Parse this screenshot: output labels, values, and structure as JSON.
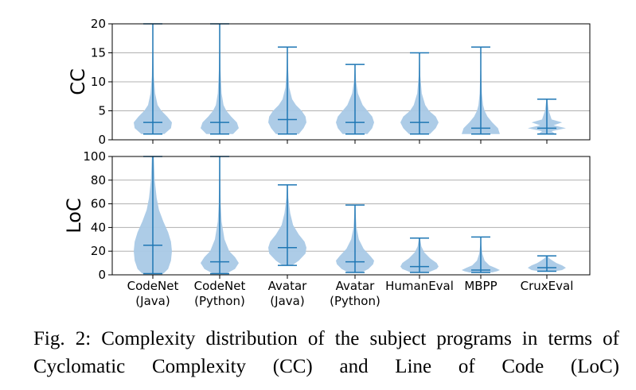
{
  "chart_data": [
    {
      "type": "violin",
      "ylabel": "CC",
      "ylim": [
        0,
        20
      ],
      "yticks": [
        "0",
        "5",
        "10",
        "15",
        "20"
      ],
      "grid": true,
      "categories": [
        "CodeNet\n(Java)",
        "CodeNet\n(Python)",
        "Avatar\n(Java)",
        "Avatar\n(Python)",
        "HumanEval",
        "MBPP",
        "CruxEval"
      ],
      "stats": [
        {
          "min": 1,
          "median": 3,
          "max": 20
        },
        {
          "min": 1,
          "median": 3,
          "max": 20
        },
        {
          "min": 1,
          "median": 3.5,
          "max": 16
        },
        {
          "min": 1,
          "median": 3,
          "max": 13
        },
        {
          "min": 1,
          "median": 3,
          "max": 15
        },
        {
          "min": 1,
          "median": 2,
          "max": 16
        },
        {
          "min": 1,
          "median": 2,
          "max": 7
        }
      ],
      "density": [
        [
          [
            1,
            0.6
          ],
          [
            2,
            0.95
          ],
          [
            3,
            1.0
          ],
          [
            4,
            0.75
          ],
          [
            5,
            0.45
          ],
          [
            6,
            0.25
          ],
          [
            8,
            0.12
          ],
          [
            11,
            0.05
          ],
          [
            15,
            0.025
          ],
          [
            20,
            0.01
          ]
        ],
        [
          [
            1,
            0.7
          ],
          [
            2,
            1.0
          ],
          [
            3,
            0.9
          ],
          [
            4,
            0.6
          ],
          [
            5,
            0.35
          ],
          [
            6,
            0.2
          ],
          [
            8,
            0.1
          ],
          [
            12,
            0.04
          ],
          [
            16,
            0.02
          ],
          [
            20,
            0.01
          ]
        ],
        [
          [
            1,
            0.6
          ],
          [
            2,
            0.85
          ],
          [
            3,
            1.0
          ],
          [
            4,
            0.95
          ],
          [
            5,
            0.75
          ],
          [
            6,
            0.45
          ],
          [
            7,
            0.25
          ],
          [
            9,
            0.1
          ],
          [
            12,
            0.04
          ],
          [
            16,
            0.01
          ]
        ],
        [
          [
            1,
            0.65
          ],
          [
            2,
            0.9
          ],
          [
            3,
            1.0
          ],
          [
            4,
            0.9
          ],
          [
            5,
            0.65
          ],
          [
            6,
            0.4
          ],
          [
            8,
            0.15
          ],
          [
            10,
            0.06
          ],
          [
            13,
            0.01
          ]
        ],
        [
          [
            1,
            0.55
          ],
          [
            2,
            0.85
          ],
          [
            3,
            1.0
          ],
          [
            4,
            0.85
          ],
          [
            5,
            0.5
          ],
          [
            6,
            0.3
          ],
          [
            8,
            0.12
          ],
          [
            11,
            0.04
          ],
          [
            15,
            0.01
          ]
        ],
        [
          [
            1,
            1.0
          ],
          [
            2,
            0.9
          ],
          [
            3,
            0.6
          ],
          [
            4,
            0.35
          ],
          [
            5,
            0.2
          ],
          [
            6,
            0.12
          ],
          [
            8,
            0.06
          ],
          [
            12,
            0.02
          ],
          [
            16,
            0.01
          ]
        ],
        [
          [
            1,
            0.45
          ],
          [
            1.5,
            0.25
          ],
          [
            2,
            1.0
          ],
          [
            2.5,
            0.35
          ],
          [
            3,
            0.8
          ],
          [
            3.5,
            0.25
          ],
          [
            4,
            0.2
          ],
          [
            5,
            0.1
          ],
          [
            7,
            0.02
          ]
        ]
      ]
    },
    {
      "type": "violin",
      "ylabel": "LoC",
      "ylim": [
        0,
        100
      ],
      "yticks": [
        "0",
        "20",
        "40",
        "60",
        "80",
        "100"
      ],
      "grid": true,
      "categories": [
        "CodeNet\n(Java)",
        "CodeNet\n(Python)",
        "Avatar\n(Java)",
        "Avatar\n(Python)",
        "HumanEval",
        "MBPP",
        "CruxEval"
      ],
      "stats": [
        {
          "min": 1,
          "median": 25,
          "max": 100
        },
        {
          "min": 1,
          "median": 11,
          "max": 100
        },
        {
          "min": 8,
          "median": 23,
          "max": 76
        },
        {
          "min": 2,
          "median": 11,
          "max": 59
        },
        {
          "min": 2,
          "median": 7,
          "max": 31
        },
        {
          "min": 2,
          "median": 4,
          "max": 32
        },
        {
          "min": 3,
          "median": 6,
          "max": 16
        }
      ],
      "density": [
        [
          [
            1,
            0.55
          ],
          [
            5,
            0.8
          ],
          [
            12,
            0.95
          ],
          [
            20,
            1.0
          ],
          [
            28,
            0.95
          ],
          [
            36,
            0.8
          ],
          [
            45,
            0.55
          ],
          [
            55,
            0.32
          ],
          [
            65,
            0.2
          ],
          [
            80,
            0.1
          ],
          [
            100,
            0.05
          ]
        ],
        [
          [
            1,
            0.35
          ],
          [
            5,
            0.8
          ],
          [
            10,
            1.0
          ],
          [
            15,
            0.8
          ],
          [
            20,
            0.5
          ],
          [
            30,
            0.25
          ],
          [
            45,
            0.1
          ],
          [
            60,
            0.05
          ],
          [
            80,
            0.03
          ],
          [
            100,
            0.02
          ]
        ],
        [
          [
            8,
            0.25
          ],
          [
            12,
            0.6
          ],
          [
            18,
            0.95
          ],
          [
            23,
            1.0
          ],
          [
            28,
            0.9
          ],
          [
            34,
            0.6
          ],
          [
            42,
            0.3
          ],
          [
            52,
            0.15
          ],
          [
            65,
            0.05
          ],
          [
            76,
            0.02
          ]
        ],
        [
          [
            2,
            0.35
          ],
          [
            5,
            0.7
          ],
          [
            9,
            0.95
          ],
          [
            12,
            1.0
          ],
          [
            16,
            0.8
          ],
          [
            22,
            0.45
          ],
          [
            30,
            0.2
          ],
          [
            40,
            0.08
          ],
          [
            50,
            0.04
          ],
          [
            59,
            0.02
          ]
        ],
        [
          [
            2,
            0.45
          ],
          [
            5,
            0.9
          ],
          [
            7,
            1.0
          ],
          [
            10,
            0.9
          ],
          [
            14,
            0.55
          ],
          [
            19,
            0.25
          ],
          [
            24,
            0.1
          ],
          [
            31,
            0.02
          ]
        ],
        [
          [
            2,
            0.6
          ],
          [
            3,
            0.85
          ],
          [
            4,
            1.0
          ],
          [
            6,
            0.75
          ],
          [
            8,
            0.45
          ],
          [
            12,
            0.2
          ],
          [
            18,
            0.08
          ],
          [
            25,
            0.03
          ],
          [
            32,
            0.01
          ]
        ],
        [
          [
            3,
            0.4
          ],
          [
            4,
            0.8
          ],
          [
            6,
            1.0
          ],
          [
            8,
            0.8
          ],
          [
            10,
            0.5
          ],
          [
            12,
            0.3
          ],
          [
            14,
            0.12
          ],
          [
            16,
            0.03
          ]
        ]
      ]
    }
  ],
  "caption": "Fig. 2: Complexity distribution of the subject programs in terms of Cyclomatic Complexity (CC) and Line of Code (LoC)",
  "colors": {
    "violin_fill": "#a9c9e6",
    "line": "#1f77b4",
    "grid": "#b0b0b0",
    "frame": "#000000"
  }
}
